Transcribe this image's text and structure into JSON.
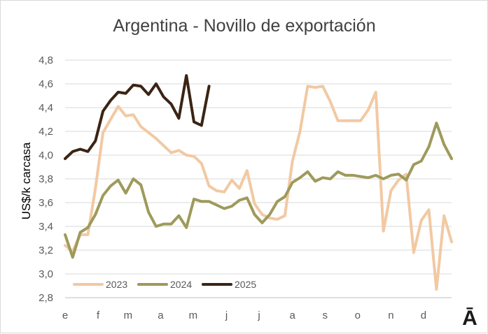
{
  "chart_data": {
    "type": "line",
    "title": "Argentina - Novillo de exportación",
    "ylabel": "US$/k carcasa",
    "xlabel": "",
    "ylim": [
      2.8,
      4.8
    ],
    "y_ticks": [
      "2,8",
      "3,0",
      "3,2",
      "3,4",
      "3,6",
      "3,8",
      "4,0",
      "4,2",
      "4,4",
      "4,6",
      "4,8"
    ],
    "x_tick_labels": [
      "e",
      "f",
      "m",
      "a",
      "m",
      "j",
      "j",
      "a",
      "s",
      "o",
      "n",
      "d"
    ],
    "x_unit": "week of year",
    "grid": "horizontal",
    "legend_position": "bottom-left",
    "series": [
      {
        "name": "2023",
        "color": "#f2c9a3",
        "values": [
          3.24,
          3.19,
          3.33,
          3.33,
          3.72,
          4.19,
          4.3,
          4.41,
          4.33,
          4.34,
          4.24,
          4.19,
          4.14,
          4.08,
          4.02,
          4.04,
          4.0,
          3.99,
          3.93,
          3.74,
          3.7,
          3.69,
          3.79,
          3.72,
          3.87,
          3.59,
          3.5,
          3.47,
          3.46,
          3.49,
          3.95,
          4.2,
          4.58,
          4.57,
          4.58,
          4.45,
          4.29,
          4.29,
          4.29,
          4.29,
          4.38,
          4.53,
          3.36,
          3.7,
          3.79,
          3.84,
          3.18,
          3.45,
          3.54,
          2.87,
          3.49,
          3.27
        ]
      },
      {
        "name": "2024",
        "color": "#9e9a5b",
        "values": [
          3.33,
          3.14,
          3.35,
          3.39,
          3.5,
          3.66,
          3.74,
          3.79,
          3.68,
          3.8,
          3.75,
          3.52,
          3.4,
          3.42,
          3.42,
          3.49,
          3.39,
          3.63,
          3.61,
          3.61,
          3.58,
          3.55,
          3.57,
          3.62,
          3.64,
          3.5,
          3.43,
          3.5,
          3.61,
          3.65,
          3.77,
          3.81,
          3.86,
          3.78,
          3.81,
          3.8,
          3.86,
          3.83,
          3.83,
          3.82,
          3.81,
          3.83,
          3.8,
          3.83,
          3.84,
          3.79,
          3.92,
          3.95,
          4.07,
          4.27,
          4.09,
          3.97
        ]
      },
      {
        "name": "2025",
        "color": "#3b2415",
        "values": [
          3.97,
          4.03,
          4.05,
          4.03,
          4.12,
          4.37,
          4.46,
          4.53,
          4.52,
          4.59,
          4.58,
          4.51,
          4.6,
          4.49,
          4.43,
          4.31,
          4.67,
          4.28,
          4.25,
          4.58
        ]
      }
    ]
  },
  "logo_text": "Ā"
}
